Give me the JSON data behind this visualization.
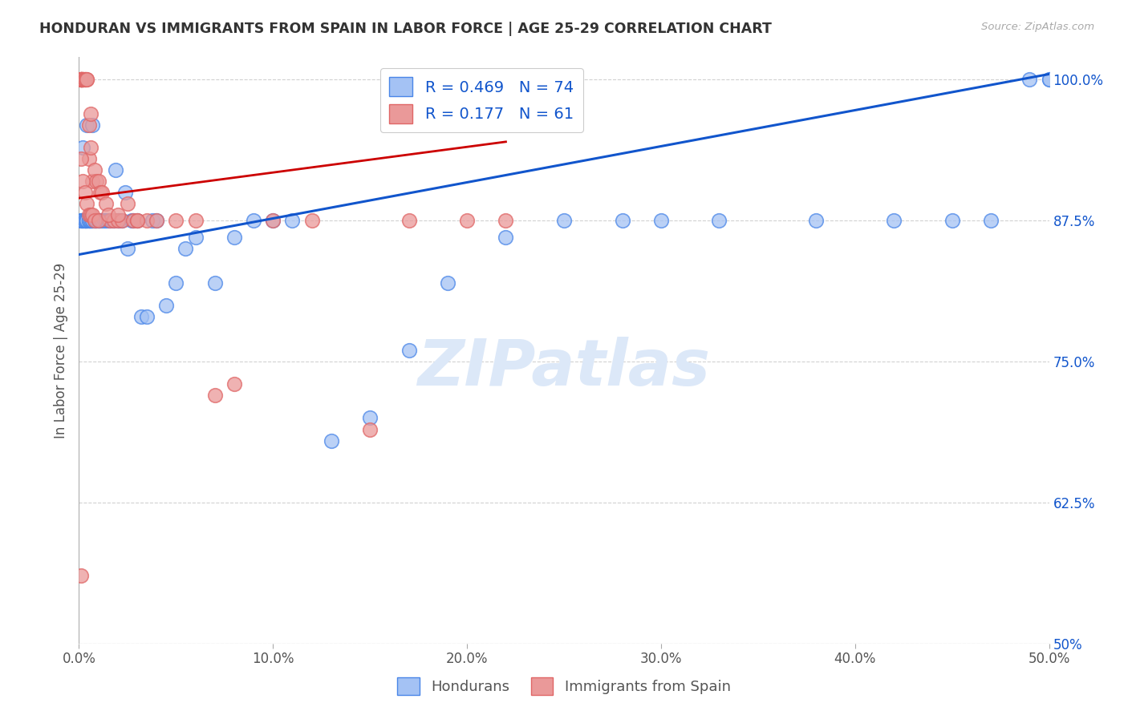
{
  "title": "HONDURAN VS IMMIGRANTS FROM SPAIN IN LABOR FORCE | AGE 25-29 CORRELATION CHART",
  "source_text": "Source: ZipAtlas.com",
  "ylabel": "In Labor Force | Age 25-29",
  "xlim": [
    0.0,
    0.5
  ],
  "ylim": [
    0.5,
    1.02
  ],
  "xticks": [
    0.0,
    0.1,
    0.2,
    0.3,
    0.4,
    0.5
  ],
  "yticks": [
    0.5,
    0.625,
    0.75,
    0.875,
    1.0
  ],
  "xticklabels": [
    "0.0%",
    "10.0%",
    "20.0%",
    "30.0%",
    "40.0%",
    "50.0%"
  ],
  "yticklabels_right": [
    "50%",
    "62.5%",
    "75.0%",
    "87.5%",
    "100.0%"
  ],
  "blue_fill": "#a4c2f4",
  "blue_edge": "#4a86e8",
  "pink_fill": "#ea9999",
  "pink_edge": "#e06666",
  "blue_line_color": "#1155cc",
  "pink_line_color": "#cc0000",
  "legend_R_blue": "R = 0.469",
  "legend_N_blue": "N = 74",
  "legend_R_pink": "R = 0.177",
  "legend_N_pink": "N = 61",
  "grid_color": "#cccccc",
  "watermark_text": "ZIPatlas",
  "watermark_color": "#dce8f8",
  "blue_scatter_x": [
    0.001,
    0.001,
    0.002,
    0.002,
    0.002,
    0.003,
    0.003,
    0.003,
    0.003,
    0.004,
    0.004,
    0.004,
    0.005,
    0.005,
    0.005,
    0.006,
    0.006,
    0.007,
    0.007,
    0.008,
    0.008,
    0.009,
    0.009,
    0.01,
    0.01,
    0.011,
    0.012,
    0.013,
    0.014,
    0.015,
    0.016,
    0.017,
    0.018,
    0.019,
    0.02,
    0.021,
    0.022,
    0.024,
    0.025,
    0.027,
    0.028,
    0.03,
    0.032,
    0.035,
    0.038,
    0.04,
    0.045,
    0.05,
    0.055,
    0.06,
    0.07,
    0.08,
    0.09,
    0.1,
    0.11,
    0.13,
    0.15,
    0.17,
    0.19,
    0.22,
    0.25,
    0.28,
    0.3,
    0.33,
    0.38,
    0.42,
    0.45,
    0.47,
    0.49,
    0.5,
    0.002,
    0.004,
    0.007,
    0.5
  ],
  "blue_scatter_y": [
    0.875,
    0.875,
    0.875,
    0.875,
    0.875,
    0.875,
    0.875,
    0.875,
    0.875,
    0.875,
    0.875,
    0.875,
    0.875,
    0.875,
    0.875,
    0.875,
    0.875,
    0.875,
    0.875,
    0.875,
    0.875,
    0.875,
    0.875,
    0.875,
    0.875,
    0.875,
    0.875,
    0.875,
    0.875,
    0.875,
    0.875,
    0.875,
    0.875,
    0.92,
    0.875,
    0.875,
    0.875,
    0.9,
    0.85,
    0.875,
    0.875,
    0.875,
    0.79,
    0.79,
    0.875,
    0.875,
    0.8,
    0.82,
    0.85,
    0.86,
    0.82,
    0.86,
    0.875,
    0.875,
    0.875,
    0.68,
    0.7,
    0.76,
    0.82,
    0.86,
    0.875,
    0.875,
    0.875,
    0.875,
    0.875,
    0.875,
    0.875,
    0.875,
    1.0,
    1.0,
    0.94,
    0.96,
    0.96,
    1.0
  ],
  "pink_scatter_x": [
    0.001,
    0.001,
    0.001,
    0.001,
    0.001,
    0.001,
    0.001,
    0.001,
    0.002,
    0.002,
    0.002,
    0.002,
    0.002,
    0.003,
    0.003,
    0.003,
    0.004,
    0.004,
    0.005,
    0.005,
    0.006,
    0.006,
    0.007,
    0.008,
    0.009,
    0.01,
    0.011,
    0.012,
    0.014,
    0.016,
    0.018,
    0.02,
    0.022,
    0.025,
    0.028,
    0.03,
    0.035,
    0.04,
    0.05,
    0.06,
    0.07,
    0.08,
    0.1,
    0.12,
    0.15,
    0.17,
    0.2,
    0.22,
    0.001,
    0.002,
    0.003,
    0.004,
    0.005,
    0.006,
    0.007,
    0.008,
    0.01,
    0.015,
    0.02,
    0.03,
    0.001
  ],
  "pink_scatter_y": [
    1.0,
    1.0,
    1.0,
    1.0,
    1.0,
    1.0,
    1.0,
    1.0,
    1.0,
    1.0,
    1.0,
    1.0,
    1.0,
    1.0,
    1.0,
    1.0,
    1.0,
    1.0,
    0.96,
    0.93,
    0.97,
    0.94,
    0.91,
    0.92,
    0.91,
    0.91,
    0.9,
    0.9,
    0.89,
    0.875,
    0.875,
    0.875,
    0.875,
    0.89,
    0.875,
    0.875,
    0.875,
    0.875,
    0.875,
    0.875,
    0.72,
    0.73,
    0.875,
    0.875,
    0.69,
    0.875,
    0.875,
    0.875,
    0.93,
    0.91,
    0.9,
    0.89,
    0.88,
    0.88,
    0.88,
    0.875,
    0.875,
    0.88,
    0.88,
    0.875,
    0.56
  ],
  "blue_line_x": [
    0.0,
    0.5
  ],
  "blue_line_y": [
    0.845,
    1.005
  ],
  "pink_line_x": [
    0.0,
    0.22
  ],
  "pink_line_y": [
    0.895,
    0.945
  ]
}
